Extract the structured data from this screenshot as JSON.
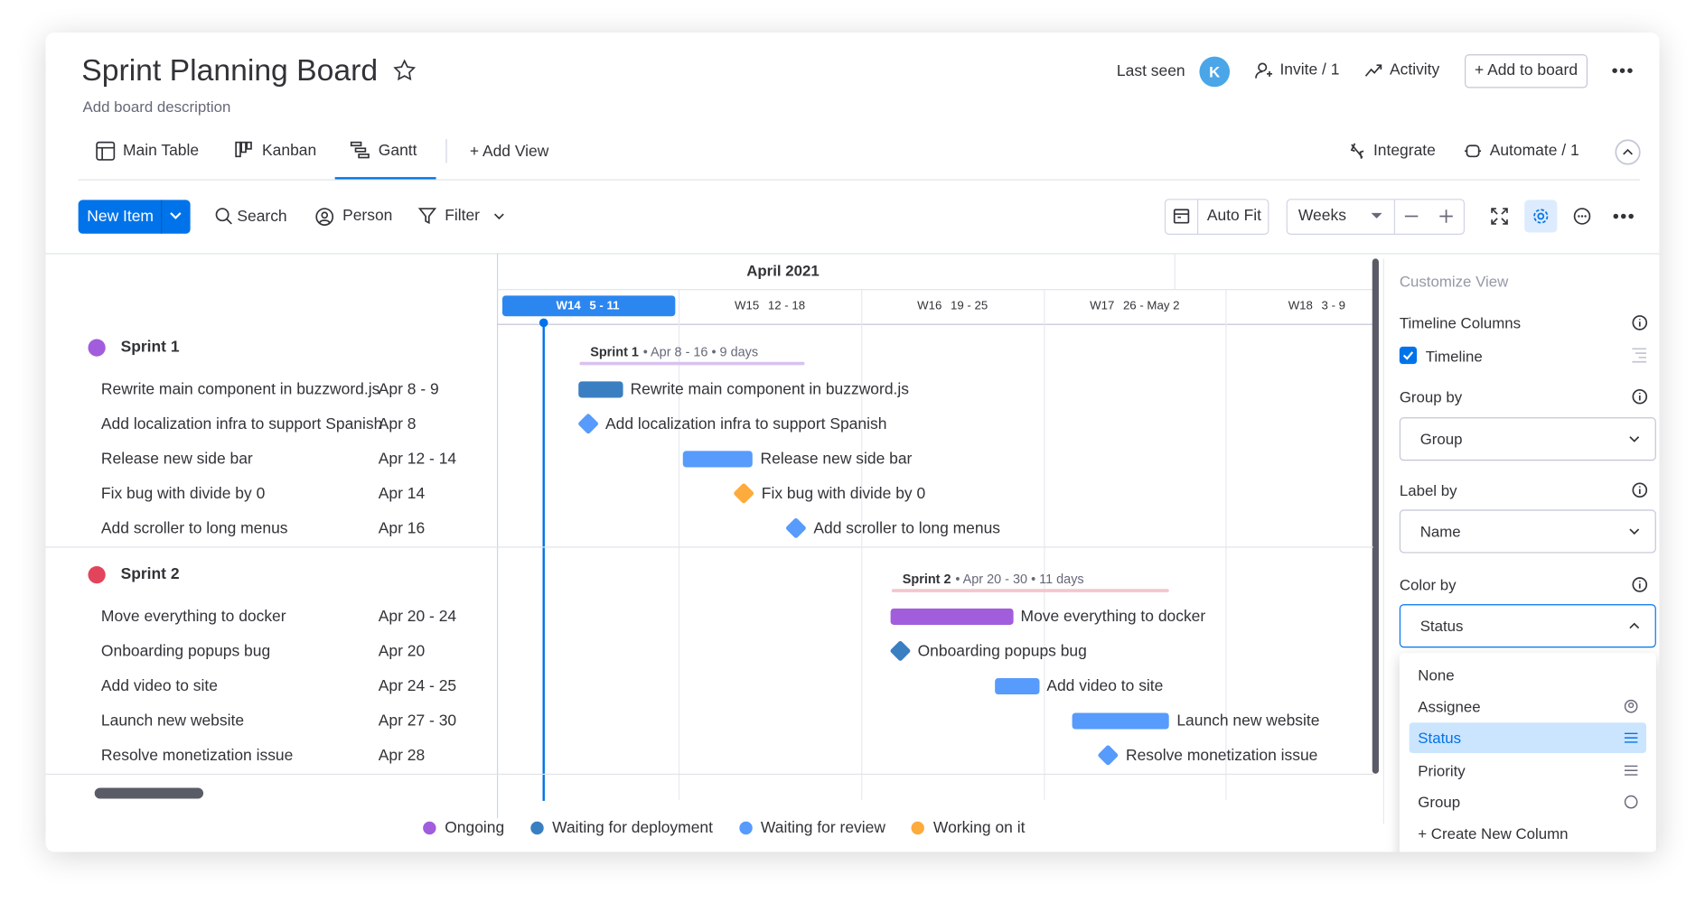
{
  "header": {
    "title": "Sprint Planning Board",
    "description": "Add board description",
    "last_seen": "Last seen",
    "avatar": "K",
    "invite": "Invite / 1",
    "activity": "Activity",
    "add_to_board": "+ Add to board"
  },
  "views": {
    "tabs": [
      "Main Table",
      "Kanban",
      "Gantt"
    ],
    "add_view": "+ Add View",
    "integrate": "Integrate",
    "automate": "Automate / 1"
  },
  "toolbar": {
    "new_item": "New Item",
    "search": "Search",
    "person": "Person",
    "filter": "Filter",
    "auto_fit": "Auto Fit",
    "scale": "Weeks"
  },
  "gantt": {
    "month": "April 2021",
    "weeks": [
      {
        "week": "W14",
        "range": "5 - 11"
      },
      {
        "week": "W15",
        "range": "12 - 18"
      },
      {
        "week": "W16",
        "range": "19 - 25"
      },
      {
        "week": "W17",
        "range": "26 - May 2"
      },
      {
        "week": "W18",
        "range": "3 - 9"
      }
    ],
    "groups": [
      {
        "name": "Sprint 1",
        "color": "#a25ddc",
        "summary": "• Apr 8 - 16 • 9 days",
        "summary_color": "#d9c2f0",
        "items": [
          {
            "name": "Rewrite main component in buzzword.js",
            "dates": "Apr 8 - 9",
            "color": "#3a7fc1"
          },
          {
            "name": "Add localization infra to support Spanish",
            "dates": "Apr 8",
            "color": "#579bfc"
          },
          {
            "name": "Release new side bar",
            "dates": "Apr 12 - 14",
            "color": "#579bfc"
          },
          {
            "name": "Fix bug with divide by 0",
            "dates": "Apr 14",
            "color": "#fdab3d"
          },
          {
            "name": "Add scroller to long menus",
            "dates": "Apr 16",
            "color": "#579bfc"
          }
        ]
      },
      {
        "name": "Sprint 2",
        "color": "#e2445c",
        "summary": "• Apr 20 - 30 • 11 days",
        "summary_color": "#f4c5cd",
        "items": [
          {
            "name": "Move everything to docker",
            "dates": "Apr 20 - 24",
            "color": "#a25ddc"
          },
          {
            "name": "Onboarding popups bug",
            "dates": "Apr 20",
            "color": "#3a7fc1"
          },
          {
            "name": "Add video to site",
            "dates": "Apr 24 - 25",
            "color": "#579bfc"
          },
          {
            "name": "Launch new website",
            "dates": "Apr 27 - 30",
            "color": "#579bfc"
          },
          {
            "name": "Resolve monetization issue",
            "dates": "Apr 28",
            "color": "#579bfc"
          }
        ]
      }
    ]
  },
  "legend": [
    {
      "label": "Ongoing",
      "color": "#a25ddc"
    },
    {
      "label": "Waiting for deployment",
      "color": "#3a7fc1"
    },
    {
      "label": "Waiting for review",
      "color": "#579bfc"
    },
    {
      "label": "Working on it",
      "color": "#fdab3d"
    }
  ],
  "panel": {
    "title": "Customize View",
    "timeline_columns": "Timeline Columns",
    "timeline": "Timeline",
    "group_by": "Group by",
    "group_value": "Group",
    "label_by": "Label by",
    "label_value": "Name",
    "color_by": "Color by",
    "color_value": "Status",
    "options": [
      "None",
      "Assignee",
      "Status",
      "Priority",
      "Group"
    ],
    "selected_option": 2,
    "create": "+ Create New Column"
  }
}
